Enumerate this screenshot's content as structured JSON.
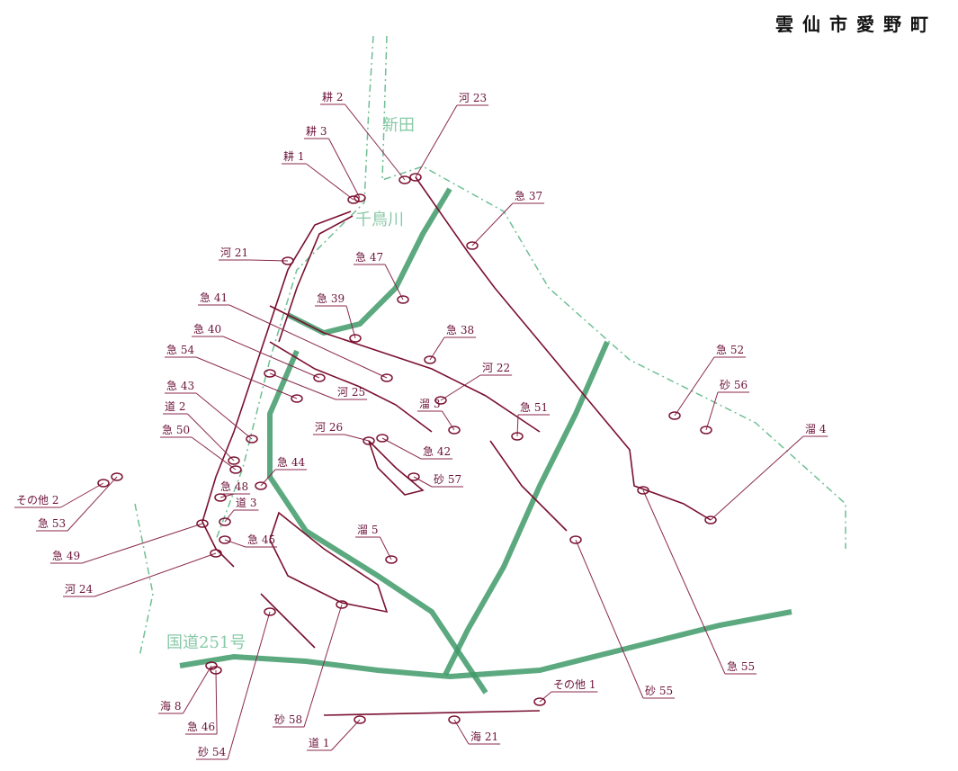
{
  "title": "雲仙市愛野町",
  "map_labels": [
    "新田",
    "千鳥川",
    "国道251号"
  ],
  "labels": [
    "耕 2",
    "河 23",
    "耕 3",
    "耕 1",
    "急 37",
    "河 21",
    "急 47",
    "急 41",
    "急 39",
    "急 40",
    "急 38",
    "急 52",
    "急 54",
    "河 22",
    "砂 56",
    "河 25",
    "急 43",
    "道 2",
    "溜 3",
    "急 51",
    "溜 4",
    "河 26",
    "急 42",
    "急 50",
    "急 44",
    "砂 57",
    "その他 2",
    "急 48",
    "急 53",
    "道 3",
    "溜 5",
    "急 49",
    "急 45",
    "河 24",
    "急 55",
    "砂 55",
    "その他 1",
    "海 8",
    "急 46",
    "砂 58",
    "砂 54",
    "道 1",
    "海 21"
  ]
}
